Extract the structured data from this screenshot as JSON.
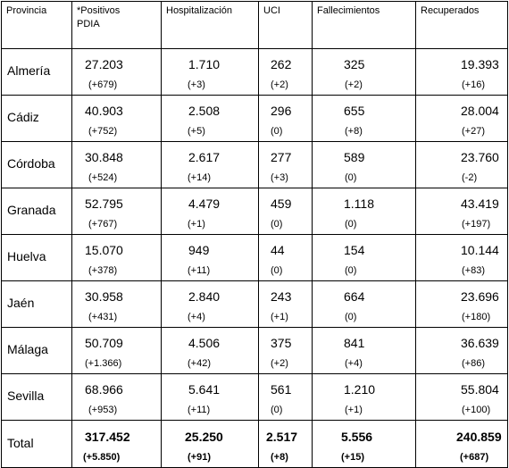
{
  "headers": [
    "Provincia",
    "*Positivos PDIA",
    "Hospitalización",
    "UCI",
    "Fallecimientos",
    "Recuperados"
  ],
  "header_positivos_lines": [
    "*Positivos",
    "PDIA"
  ],
  "rows": [
    {
      "province": "Almería",
      "positivos": "27.203",
      "positivos_delta": "(+679)",
      "hosp": "1.710",
      "hosp_delta": "(+3)",
      "uci": "262",
      "uci_delta": "(+2)",
      "fall": "325",
      "fall_delta": "(+2)",
      "recup": "19.393",
      "recup_delta": "(+16)"
    },
    {
      "province": "Cádiz",
      "positivos": "40.903",
      "positivos_delta": "(+752)",
      "hosp": "2.508",
      "hosp_delta": "(+5)",
      "uci": "296",
      "uci_delta": "(0)",
      "fall": "655",
      "fall_delta": "(+8)",
      "recup": "28.004",
      "recup_delta": "(+27)"
    },
    {
      "province": "Córdoba",
      "positivos": "30.848",
      "positivos_delta": "(+524)",
      "hosp": "2.617",
      "hosp_delta": "(+14)",
      "uci": "277",
      "uci_delta": "(+3)",
      "fall": "589",
      "fall_delta": "(0)",
      "recup": "23.760",
      "recup_delta": "(-2)"
    },
    {
      "province": "Granada",
      "positivos": "52.795",
      "positivos_delta": "(+767)",
      "hosp": "4.479",
      "hosp_delta": "(+1)",
      "uci": "459",
      "uci_delta": "(0)",
      "fall": "1.118",
      "fall_delta": "(0)",
      "recup": "43.419",
      "recup_delta": "(+197)"
    },
    {
      "province": "Huelva",
      "positivos": "15.070",
      "positivos_delta": "(+378)",
      "hosp": "949",
      "hosp_delta": "(+11)",
      "uci": "44",
      "uci_delta": "(0)",
      "fall": "154",
      "fall_delta": "(0)",
      "recup": "10.144",
      "recup_delta": "(+83)"
    },
    {
      "province": "Jaén",
      "positivos": "30.958",
      "positivos_delta": "(+431)",
      "hosp": "2.840",
      "hosp_delta": "(+4)",
      "uci": "243",
      "uci_delta": "(+1)",
      "fall": "664",
      "fall_delta": "(0)",
      "recup": "23.696",
      "recup_delta": "(+180)"
    },
    {
      "province": "Málaga",
      "positivos": "50.709",
      "positivos_delta": "(+1.366)",
      "hosp": "4.506",
      "hosp_delta": "(+42)",
      "uci": "375",
      "uci_delta": "(+2)",
      "fall": "841",
      "fall_delta": "(+4)",
      "recup": "36.639",
      "recup_delta": "(+86)"
    },
    {
      "province": "Sevilla",
      "positivos": "68.966",
      "positivos_delta": "(+953)",
      "hosp": "5.641",
      "hosp_delta": "(+11)",
      "uci": "561",
      "uci_delta": "(0)",
      "fall": "1.210",
      "fall_delta": "(+1)",
      "recup": "55.804",
      "recup_delta": "(+100)"
    }
  ],
  "total": {
    "province": "Total",
    "positivos": "317.452",
    "positivos_delta": "(+5.850)",
    "hosp": "25.250",
    "hosp_delta": "(+91)",
    "uci": "2.517",
    "uci_delta": "(+8)",
    "fall": "5.556",
    "fall_delta": "(+15)",
    "recup": "240.859",
    "recup_delta": "(+687)"
  }
}
